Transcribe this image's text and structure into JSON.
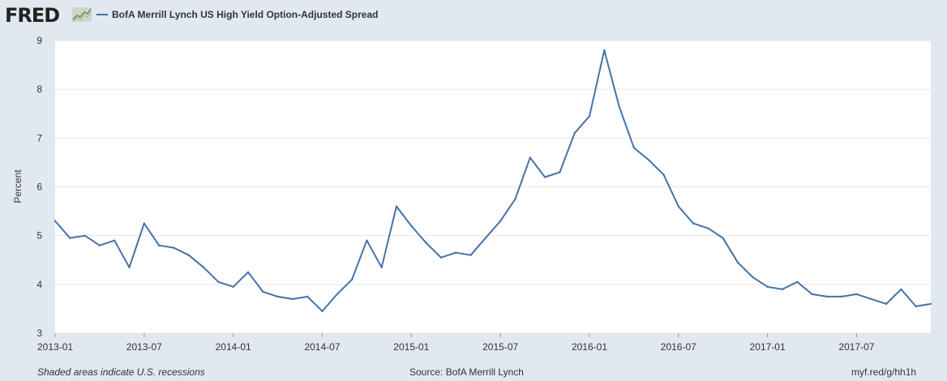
{
  "brand": "FRED",
  "legend": {
    "label": "BofA Merrill Lynch US High Yield Option-Adjusted Spread",
    "color": "#4572a7"
  },
  "footer": {
    "note": "Shaded areas indicate U.S. recessions",
    "source": "Source: BofA Merrill Lynch",
    "link": "myf.red/g/hh1h"
  },
  "chart_data": {
    "type": "line",
    "title": "",
    "xlabel": "",
    "ylabel": "Percent",
    "ylim": [
      3,
      9
    ],
    "yticks": [
      3,
      4,
      5,
      6,
      7,
      8,
      9
    ],
    "xlim": [
      "2013-01",
      "2017-12"
    ],
    "xticks": [
      "2013-01",
      "2013-07",
      "2014-01",
      "2014-07",
      "2015-01",
      "2015-07",
      "2016-01",
      "2016-07",
      "2017-01",
      "2017-07"
    ],
    "grid": true,
    "series": [
      {
        "name": "BofA Merrill Lynch US High Yield Option-Adjusted Spread",
        "color": "#4572a7",
        "x": [
          "2013-01",
          "2013-02",
          "2013-03",
          "2013-04",
          "2013-05",
          "2013-06",
          "2013-07",
          "2013-08",
          "2013-09",
          "2013-10",
          "2013-11",
          "2013-12",
          "2014-01",
          "2014-02",
          "2014-03",
          "2014-04",
          "2014-05",
          "2014-06",
          "2014-07",
          "2014-08",
          "2014-09",
          "2014-10",
          "2014-11",
          "2014-12",
          "2015-01",
          "2015-02",
          "2015-03",
          "2015-04",
          "2015-05",
          "2015-06",
          "2015-07",
          "2015-08",
          "2015-09",
          "2015-10",
          "2015-11",
          "2015-12",
          "2016-01",
          "2016-02",
          "2016-03",
          "2016-04",
          "2016-05",
          "2016-06",
          "2016-07",
          "2016-08",
          "2016-09",
          "2016-10",
          "2016-11",
          "2016-12",
          "2017-01",
          "2017-02",
          "2017-03",
          "2017-04",
          "2017-05",
          "2017-06",
          "2017-07",
          "2017-08",
          "2017-09",
          "2017-10",
          "2017-11",
          "2017-12"
        ],
        "y": [
          5.3,
          4.95,
          5.0,
          4.8,
          4.9,
          4.35,
          5.25,
          4.8,
          4.75,
          4.6,
          4.35,
          4.05,
          3.95,
          4.25,
          3.85,
          3.75,
          3.7,
          3.75,
          3.45,
          3.8,
          4.1,
          4.9,
          4.35,
          5.6,
          5.2,
          4.85,
          4.55,
          4.65,
          4.6,
          4.95,
          5.3,
          5.75,
          6.6,
          6.2,
          6.3,
          7.1,
          7.45,
          8.8,
          7.65,
          6.8,
          6.55,
          6.25,
          5.6,
          5.25,
          5.15,
          4.95,
          4.45,
          4.15,
          3.95,
          3.9,
          4.05,
          3.8,
          3.75,
          3.75,
          3.8,
          3.7,
          3.6,
          3.9,
          3.55,
          3.6
        ]
      }
    ]
  }
}
